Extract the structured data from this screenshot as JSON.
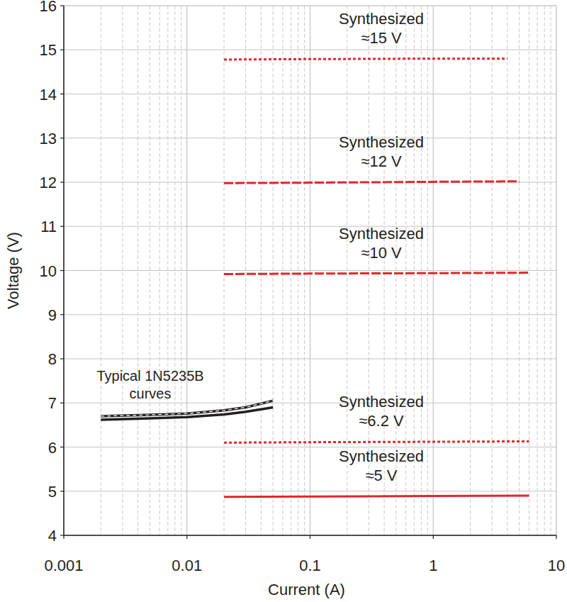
{
  "chart_data": {
    "type": "line",
    "x_label": "Current (A)",
    "y_label": "Voltage (V)",
    "log": "x",
    "grid": true,
    "xlim": [
      0.001,
      10
    ],
    "ylim": [
      4,
      16
    ],
    "xticks": [
      0.001,
      0.01,
      0.1,
      1,
      10
    ],
    "yticks": [
      4,
      5,
      6,
      7,
      8,
      9,
      10,
      11,
      12,
      13,
      14,
      15,
      16
    ],
    "annotations": [
      {
        "text": "Typical 1N5235B\ncurves"
      }
    ],
    "series": [
      {
        "name": "Synthesized\n≈15 V",
        "color": "#e2262c",
        "line_style": "dotted",
        "x": [
          0.02,
          0.1,
          1,
          4
        ],
        "values": [
          14.78,
          14.79,
          14.8,
          14.8
        ]
      },
      {
        "name": "Synthesized\n≈12 V",
        "color": "#e2262c",
        "line_style": "dashed",
        "x": [
          0.02,
          0.1,
          1,
          5
        ],
        "values": [
          11.98,
          11.99,
          12.01,
          12.02
        ]
      },
      {
        "name": "Synthesized\n≈10 V",
        "color": "#e2262c",
        "line_style": "dashed",
        "x": [
          0.02,
          0.1,
          1,
          6
        ],
        "values": [
          9.92,
          9.93,
          9.94,
          9.95
        ]
      },
      {
        "name": "Synthesized\n≈6.2 V",
        "color": "#e2262c",
        "line_style": "dotted",
        "x": [
          0.02,
          0.1,
          1,
          6
        ],
        "values": [
          6.1,
          6.11,
          6.12,
          6.13
        ]
      },
      {
        "name": "Synthesized\n≈5 V",
        "color": "#e2262c",
        "line_style": "solid",
        "x": [
          0.02,
          0.1,
          1,
          6
        ],
        "values": [
          4.87,
          4.88,
          4.89,
          4.9
        ]
      },
      {
        "color": "#231f20",
        "line_style": "solid",
        "x": [
          0.002,
          0.005,
          0.01,
          0.02,
          0.03,
          0.05
        ],
        "values": [
          6.62,
          6.65,
          6.68,
          6.74,
          6.8,
          6.9
        ]
      },
      {
        "color": "#231f20",
        "line_style": "dashed",
        "x": [
          0.002,
          0.005,
          0.01,
          0.02,
          0.03,
          0.05
        ],
        "values": [
          6.7,
          6.73,
          6.76,
          6.83,
          6.9,
          7.05
        ]
      }
    ]
  }
}
